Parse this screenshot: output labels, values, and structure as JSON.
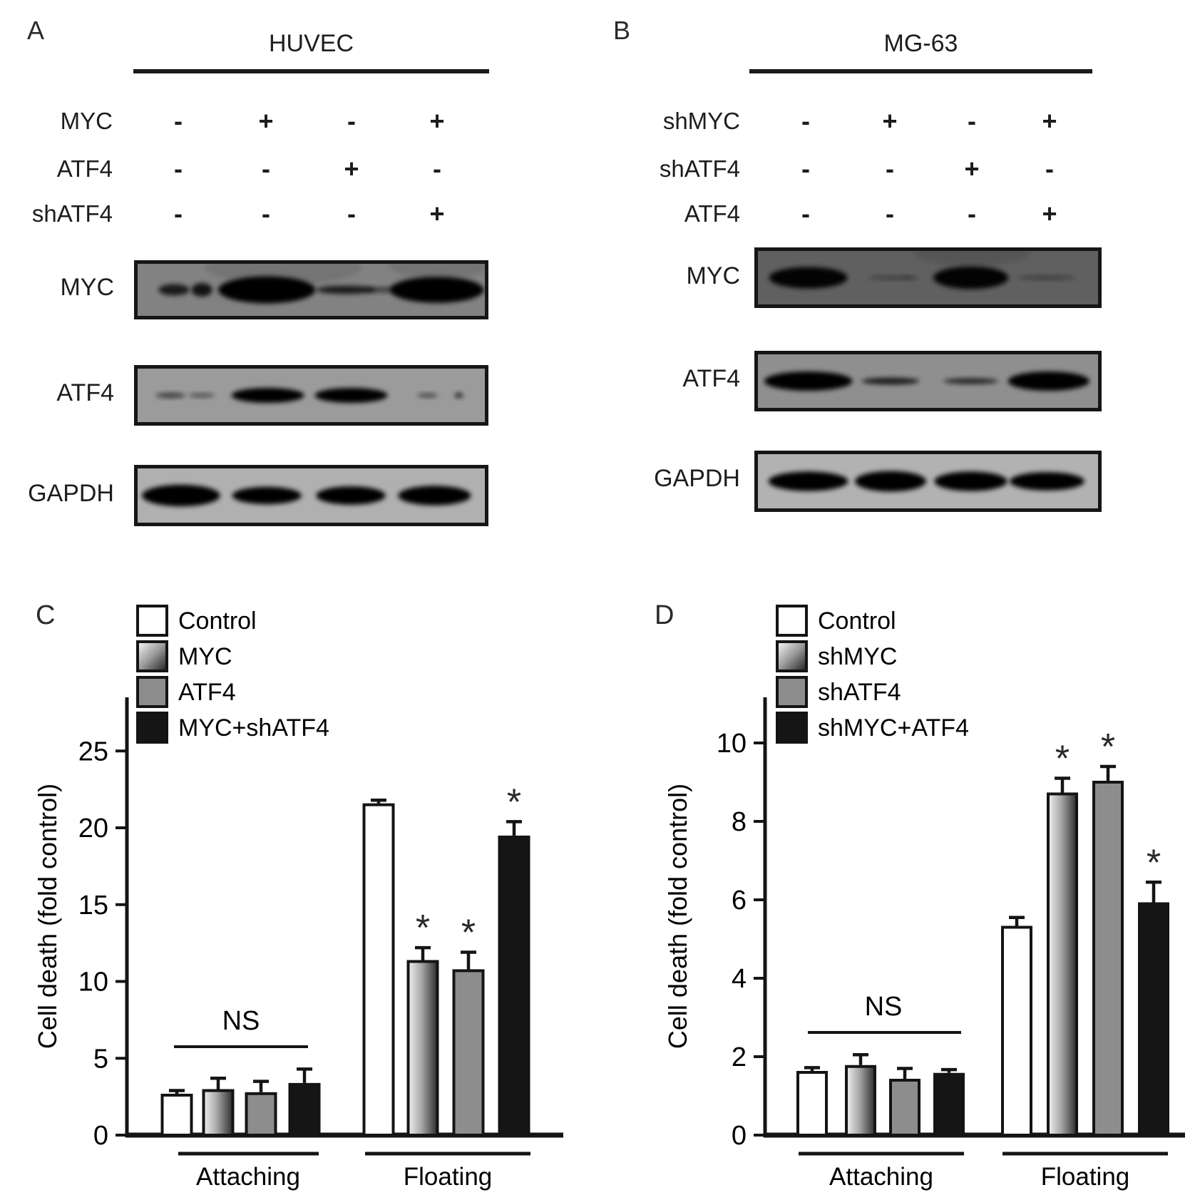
{
  "figure": {
    "background": "#ffffff"
  },
  "panel_a": {
    "letter": "A",
    "cell_line": "HUVEC",
    "conditions": [
      {
        "label": "MYC",
        "values": [
          "-",
          "+",
          "-",
          "+"
        ]
      },
      {
        "label": "ATF4",
        "values": [
          "-",
          "-",
          "+",
          "-"
        ]
      },
      {
        "label": "shATF4",
        "values": [
          "-",
          "-",
          "-",
          "+"
        ]
      }
    ],
    "blots": [
      {
        "protein": "MYC",
        "bg": "#828282",
        "bands": [
          {
            "x": 0.105,
            "w": 0.09,
            "h": 0.22,
            "o": 0.8
          },
          {
            "x": 0.185,
            "w": 0.06,
            "h": 0.26,
            "o": 0.85
          },
          {
            "x": 0.372,
            "w": 0.28,
            "h": 0.52,
            "o": 1
          },
          {
            "x": 0.6,
            "w": 0.17,
            "h": 0.16,
            "o": 0.8
          },
          {
            "x": 0.705,
            "w": 0.1,
            "h": 0.11,
            "o": 0.5
          },
          {
            "x": 0.862,
            "w": 0.27,
            "h": 0.5,
            "o": 1
          },
          {
            "x": 0.42,
            "w": 0.45,
            "h": 0.7,
            "o": 0.1,
            "dy": -0.45
          },
          {
            "x": 0.87,
            "w": 0.3,
            "h": 0.55,
            "o": 0.1,
            "dy": -0.5
          }
        ]
      },
      {
        "protein": "ATF4",
        "bg": "#9b9b9b",
        "bands": [
          {
            "x": 0.095,
            "w": 0.085,
            "h": 0.1,
            "o": 0.6
          },
          {
            "x": 0.185,
            "w": 0.075,
            "h": 0.08,
            "o": 0.5
          },
          {
            "x": 0.375,
            "w": 0.21,
            "h": 0.28,
            "o": 1
          },
          {
            "x": 0.615,
            "w": 0.21,
            "h": 0.28,
            "o": 1
          },
          {
            "x": 0.835,
            "w": 0.06,
            "h": 0.08,
            "o": 0.55
          },
          {
            "x": 0.925,
            "w": 0.025,
            "h": 0.1,
            "o": 0.7
          }
        ]
      },
      {
        "protein": "GAPDH",
        "bg": "#b0b0b0",
        "bands": [
          {
            "x": 0.125,
            "w": 0.225,
            "h": 0.4,
            "o": 1
          },
          {
            "x": 0.372,
            "w": 0.2,
            "h": 0.32,
            "o": 1
          },
          {
            "x": 0.614,
            "w": 0.2,
            "h": 0.34,
            "o": 1
          },
          {
            "x": 0.855,
            "w": 0.21,
            "h": 0.36,
            "o": 1
          }
        ]
      }
    ]
  },
  "panel_b": {
    "letter": "B",
    "cell_line": "MG-63",
    "conditions": [
      {
        "label": "shMYC",
        "values": [
          "-",
          "+",
          "-",
          "+"
        ]
      },
      {
        "label": "shATF4",
        "values": [
          "-",
          "-",
          "+",
          "-"
        ]
      },
      {
        "label": "ATF4",
        "values": [
          "-",
          "-",
          "-",
          "+"
        ]
      }
    ],
    "blots": [
      {
        "protein": "MYC",
        "bg": "#606060",
        "bands": [
          {
            "x": 0.148,
            "w": 0.23,
            "h": 0.4,
            "o": 0.97
          },
          {
            "x": 0.39,
            "w": 0.13,
            "h": 0.08,
            "o": 0.33
          },
          {
            "x": 0.45,
            "w": 0.05,
            "h": 0.07,
            "o": 0.28
          },
          {
            "x": 0.626,
            "w": 0.22,
            "h": 0.42,
            "o": 0.97
          },
          {
            "x": 0.85,
            "w": 0.17,
            "h": 0.09,
            "o": 0.32
          },
          {
            "x": 0.63,
            "w": 0.35,
            "h": 0.55,
            "o": 0.1,
            "dy": -0.5
          }
        ]
      },
      {
        "protein": "ATF4",
        "bg": "#8f8f8f",
        "bands": [
          {
            "x": 0.148,
            "w": 0.26,
            "h": 0.36,
            "o": 1
          },
          {
            "x": 0.39,
            "w": 0.17,
            "h": 0.13,
            "o": 0.8
          },
          {
            "x": 0.626,
            "w": 0.16,
            "h": 0.11,
            "o": 0.75
          },
          {
            "x": 0.855,
            "w": 0.24,
            "h": 0.36,
            "o": 1
          }
        ]
      },
      {
        "protein": "GAPDH",
        "bg": "#b2b2b2",
        "bands": [
          {
            "x": 0.148,
            "w": 0.235,
            "h": 0.36,
            "o": 1
          },
          {
            "x": 0.39,
            "w": 0.21,
            "h": 0.38,
            "o": 1
          },
          {
            "x": 0.626,
            "w": 0.215,
            "h": 0.36,
            "o": 1
          },
          {
            "x": 0.85,
            "w": 0.22,
            "h": 0.34,
            "o": 1
          }
        ]
      }
    ]
  },
  "chart_data": [
    {
      "panel": "C",
      "type": "bar",
      "title": "",
      "xlabel": "",
      "ylabel": "Cell death (fold control)",
      "ylim": [
        0,
        27.5
      ],
      "yticks": [
        0,
        5,
        10,
        15,
        20,
        25
      ],
      "categories": [
        "Attaching",
        "Floating"
      ],
      "grid": false,
      "legend_position": "top-left",
      "ns_label": "NS",
      "ns_over_category": "Attaching",
      "legend": [
        {
          "label": "Control",
          "fill": "#ffffff"
        },
        {
          "label": "MYC",
          "fill": "gradient"
        },
        {
          "label": "ATF4",
          "fill": "#8d8d8d"
        },
        {
          "label": "MYC+shATF4",
          "fill": "#151515"
        }
      ],
      "series": [
        {
          "name": "Control",
          "values": [
            2.6,
            21.5
          ],
          "errors": [
            0.3,
            0.3
          ],
          "sig": [
            "",
            ""
          ]
        },
        {
          "name": "MYC",
          "values": [
            2.9,
            11.3
          ],
          "errors": [
            0.8,
            0.9
          ],
          "sig": [
            "",
            "*"
          ]
        },
        {
          "name": "ATF4",
          "values": [
            2.7,
            10.7
          ],
          "errors": [
            0.8,
            1.2
          ],
          "sig": [
            "",
            "*"
          ]
        },
        {
          "name": "MYC+shATF4",
          "values": [
            3.3,
            19.4
          ],
          "errors": [
            1.0,
            1.0
          ],
          "sig": [
            "",
            "*"
          ]
        }
      ]
    },
    {
      "panel": "D",
      "type": "bar",
      "title": "",
      "xlabel": "",
      "ylabel": "Cell death (fold control)",
      "ylim": [
        0,
        11.2
      ],
      "yticks": [
        0,
        2,
        4,
        6,
        8,
        10
      ],
      "categories": [
        "Attaching",
        "Floating"
      ],
      "grid": false,
      "legend_position": "top-left",
      "ns_label": "NS",
      "ns_over_category": "Attaching",
      "legend": [
        {
          "label": "Control",
          "fill": "#ffffff"
        },
        {
          "label": "shMYC",
          "fill": "gradient"
        },
        {
          "label": "shATF4",
          "fill": "#8d8d8d"
        },
        {
          "label": "shMYC+ATF4",
          "fill": "#151515"
        }
      ],
      "series": [
        {
          "name": "Control",
          "values": [
            1.6,
            5.3
          ],
          "errors": [
            0.12,
            0.25
          ],
          "sig": [
            "",
            ""
          ]
        },
        {
          "name": "shMYC",
          "values": [
            1.75,
            8.7
          ],
          "errors": [
            0.3,
            0.4
          ],
          "sig": [
            "",
            "*"
          ]
        },
        {
          "name": "shATF4",
          "values": [
            1.4,
            9.0
          ],
          "errors": [
            0.3,
            0.4
          ],
          "sig": [
            "",
            "*"
          ]
        },
        {
          "name": "shMYC+ATF4",
          "values": [
            1.55,
            5.9
          ],
          "errors": [
            0.12,
            0.55
          ],
          "sig": [
            "",
            "*"
          ]
        }
      ]
    }
  ]
}
